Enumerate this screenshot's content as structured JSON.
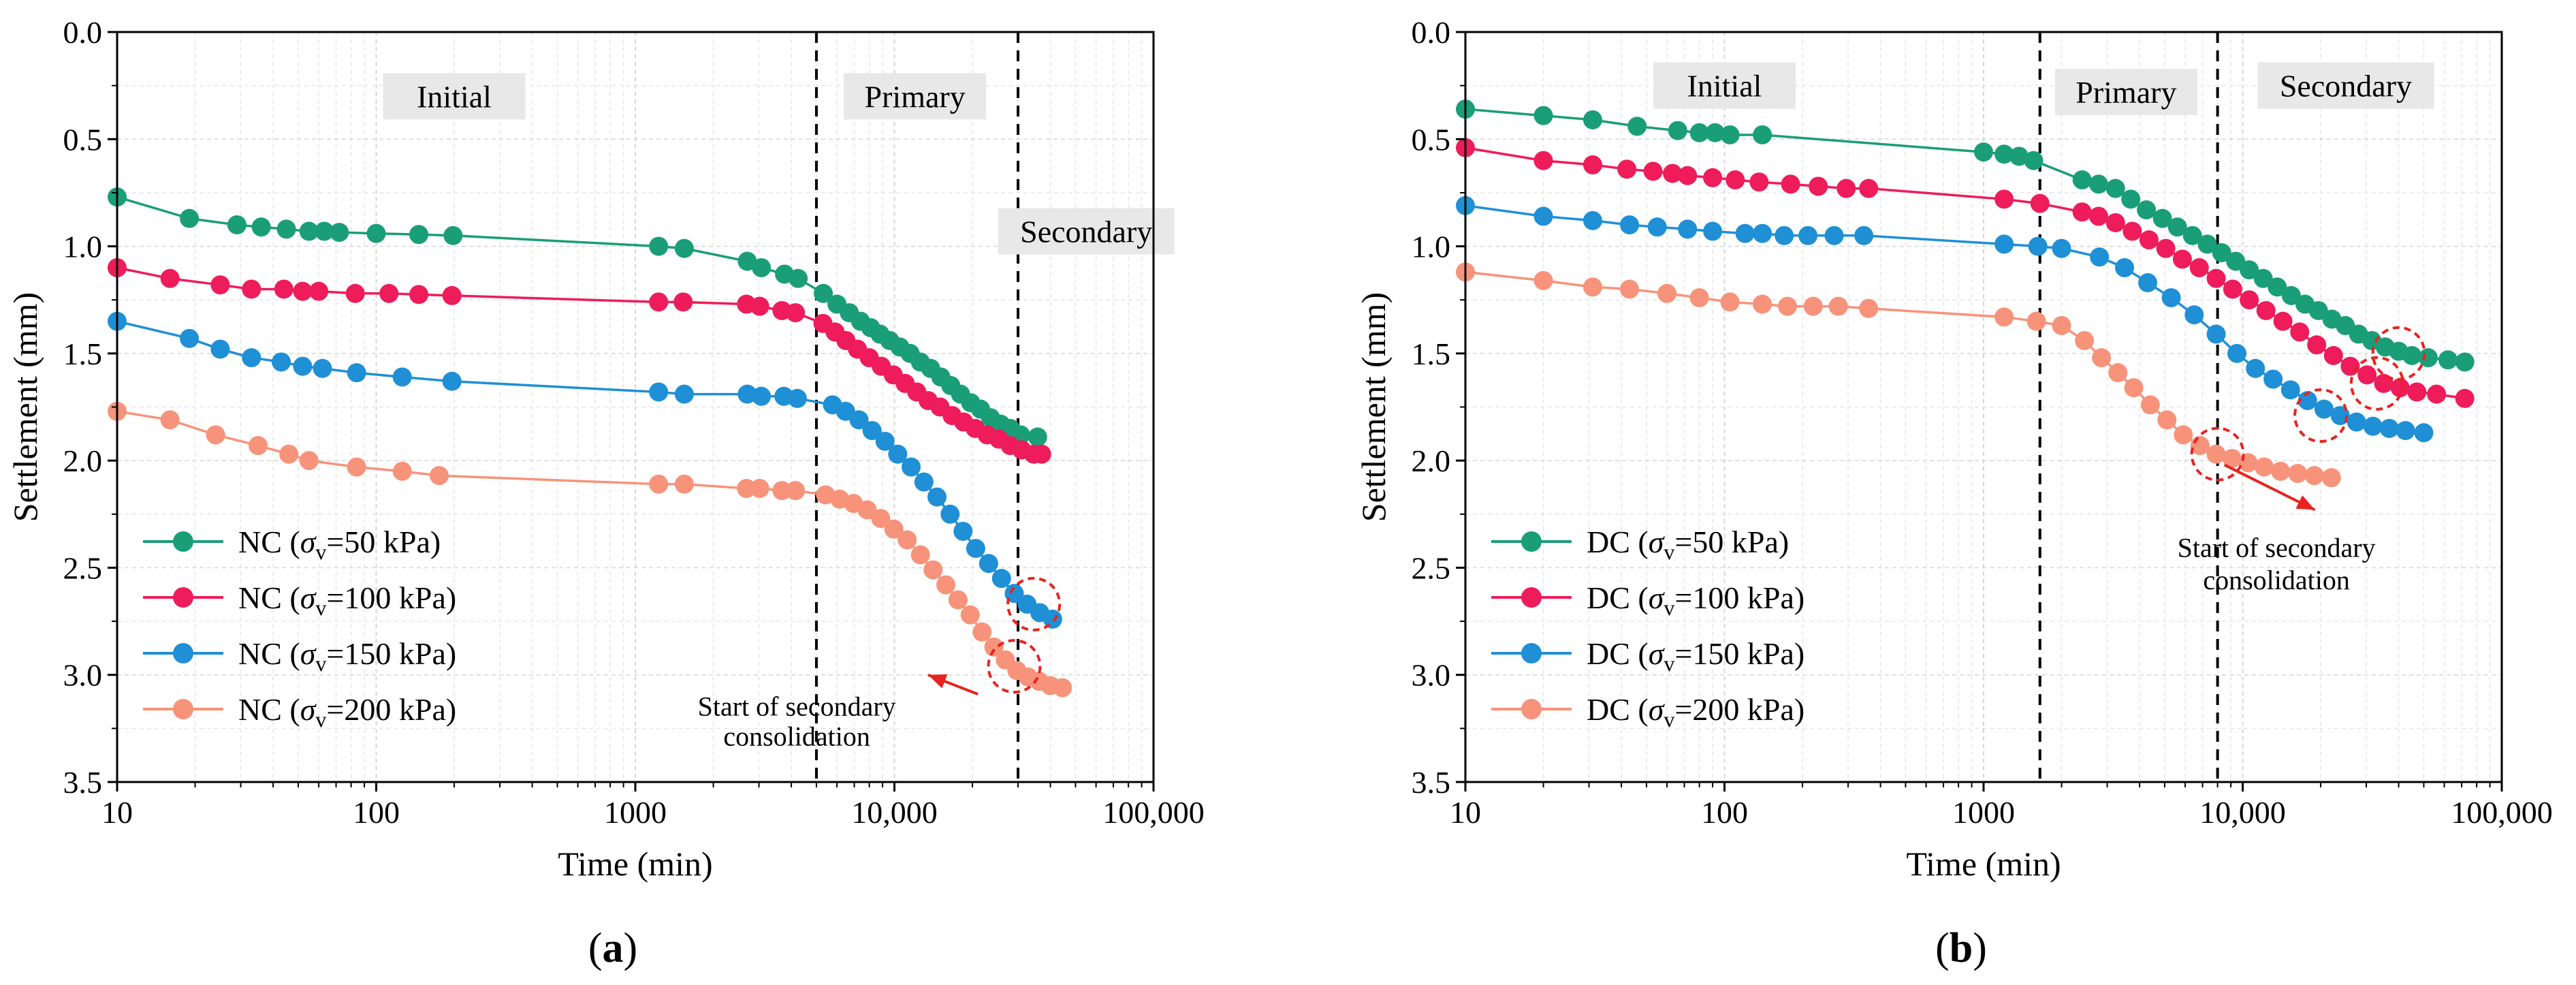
{
  "chart_data": [
    {
      "type": "line",
      "panel_label_pre": "(",
      "panel_label_bold": "a",
      "panel_label_post": ")",
      "xlabel": "Time (min)",
      "ylabel": "Settlement (mm)",
      "xscale": "log",
      "xlim": [
        10,
        100000
      ],
      "ylim": [
        0.0,
        3.5
      ],
      "y_inverted": true,
      "grid": true,
      "x_ticks": [
        10,
        100,
        1000,
        10000,
        100000
      ],
      "x_tick_labels": [
        "10",
        "100",
        "1000",
        "10,000",
        "100,000"
      ],
      "y_ticks": [
        0.0,
        0.5,
        1.0,
        1.5,
        2.0,
        2.5,
        3.0,
        3.5
      ],
      "y_tick_labels": [
        "0.0",
        "0.5",
        "1.0",
        "1.5",
        "2.0",
        "2.5",
        "3.0",
        "3.5"
      ],
      "phase_boundaries": [
        5000,
        30000
      ],
      "phase_labels": [
        {
          "text": "Initial",
          "x": 200,
          "y": 0.3
        },
        {
          "text": "Primary",
          "x": 12000,
          "y": 0.3
        },
        {
          "text": "Secondary",
          "x": 55000,
          "y": 0.93
        }
      ],
      "legend_position": "bottom-left",
      "series": [
        {
          "name": "NC (σv=50 kPa)",
          "legend_prefix": "NC (",
          "legend_sym": "σ",
          "legend_sub": "v",
          "legend_suffix": "=50 kPa)",
          "color": "#1a9e77",
          "x": [
            10,
            19,
            29,
            36,
            45,
            55,
            63,
            72,
            100,
            146,
            198,
            1230,
            1545,
            2705,
            3065,
            3765,
            4250,
            5315,
            6000,
            6700,
            7400,
            8100,
            8800,
            9600,
            10500,
            11500,
            12600,
            13800,
            15100,
            16500,
            18000,
            19700,
            21500,
            23500,
            25700,
            28000,
            30700,
            35700
          ],
          "y": [
            0.77,
            0.87,
            0.9,
            0.91,
            0.92,
            0.93,
            0.93,
            0.935,
            0.94,
            0.945,
            0.95,
            1.0,
            1.01,
            1.07,
            1.1,
            1.13,
            1.15,
            1.22,
            1.27,
            1.31,
            1.35,
            1.38,
            1.41,
            1.44,
            1.47,
            1.5,
            1.54,
            1.57,
            1.61,
            1.65,
            1.69,
            1.73,
            1.76,
            1.8,
            1.83,
            1.85,
            1.88,
            1.89
          ]
        },
        {
          "name": "NC (σv=100 kPa)",
          "legend_prefix": "NC (",
          "legend_sym": "σ",
          "legend_sub": "v",
          "legend_suffix": "=100 kPa)",
          "color": "#ee1c5a",
          "x": [
            10,
            16,
            25,
            33,
            44,
            52,
            60,
            83,
            112,
            146,
            196,
            1230,
            1530,
            2685,
            3020,
            3680,
            4150,
            5300,
            5900,
            6500,
            7200,
            8000,
            8900,
            9900,
            11000,
            12200,
            13500,
            15000,
            16700,
            18500,
            20500,
            22800,
            25300,
            28000,
            31000,
            34500,
            37000
          ],
          "y": [
            1.1,
            1.15,
            1.18,
            1.2,
            1.2,
            1.21,
            1.21,
            1.22,
            1.22,
            1.225,
            1.23,
            1.26,
            1.26,
            1.27,
            1.28,
            1.3,
            1.31,
            1.36,
            1.4,
            1.44,
            1.48,
            1.52,
            1.56,
            1.6,
            1.64,
            1.68,
            1.72,
            1.75,
            1.79,
            1.82,
            1.85,
            1.88,
            1.9,
            1.93,
            1.95,
            1.97,
            1.97
          ]
        },
        {
          "name": "NC (σv=150 kPa)",
          "legend_prefix": "NC (",
          "legend_sym": "σ",
          "legend_sub": "v",
          "legend_suffix": "=150 kPa)",
          "color": "#1f8fd6",
          "x": [
            10,
            19,
            25,
            33,
            43,
            52,
            62,
            84,
            126,
            196,
            1230,
            1545,
            2705,
            3065,
            3745,
            4220,
            5770,
            6480,
            7300,
            8200,
            9200,
            10300,
            11600,
            13000,
            14600,
            16400,
            18400,
            20600,
            23100,
            25900,
            29000,
            32500,
            36400,
            40800
          ],
          "y": [
            1.35,
            1.43,
            1.48,
            1.52,
            1.54,
            1.56,
            1.57,
            1.59,
            1.61,
            1.63,
            1.68,
            1.69,
            1.69,
            1.7,
            1.7,
            1.71,
            1.74,
            1.77,
            1.81,
            1.86,
            1.91,
            1.97,
            2.03,
            2.1,
            2.17,
            2.25,
            2.33,
            2.41,
            2.48,
            2.55,
            2.62,
            2.67,
            2.71,
            2.74
          ]
        },
        {
          "name": "NC (σv=200 kPa)",
          "legend_prefix": "NC (",
          "legend_sym": "σ",
          "legend_sub": "v",
          "legend_suffix": "=200 kPa)",
          "color": "#f7937a",
          "x": [
            10,
            16,
            24,
            35,
            46,
            55,
            84,
            126,
            175,
            1230,
            1545,
            2685,
            3020,
            3680,
            4150,
            5425,
            6150,
            6950,
            7850,
            8850,
            9950,
            11200,
            12600,
            14100,
            15800,
            17600,
            19600,
            21800,
            24200,
            26800,
            29700,
            32800,
            36200,
            40000,
            44500
          ],
          "y": [
            1.77,
            1.81,
            1.88,
            1.93,
            1.97,
            2.0,
            2.03,
            2.05,
            2.07,
            2.11,
            2.11,
            2.13,
            2.13,
            2.14,
            2.14,
            2.16,
            2.18,
            2.2,
            2.23,
            2.27,
            2.32,
            2.37,
            2.44,
            2.51,
            2.58,
            2.65,
            2.72,
            2.8,
            2.87,
            2.93,
            2.98,
            3.01,
            3.03,
            3.05,
            3.06
          ]
        }
      ],
      "annotation": {
        "line1": "Start of secondary",
        "line2": "consolidation",
        "text_x": 4200,
        "text_y1": 3.19,
        "text_y2": 3.33,
        "arrow_from": [
          21000,
          3.09
        ],
        "arrow_to": [
          13500,
          3.0
        ]
      },
      "circles": [
        {
          "x": 34500,
          "y": 2.67
        },
        {
          "x": 29000,
          "y": 2.96
        }
      ]
    },
    {
      "type": "line",
      "panel_label_pre": "(",
      "panel_label_bold": "b",
      "panel_label_post": ")",
      "xlabel": "Time (min)",
      "ylabel": "Settlement (mm)",
      "xscale": "log",
      "xlim": [
        10,
        100000
      ],
      "ylim": [
        0.0,
        3.5
      ],
      "y_inverted": true,
      "grid": true,
      "x_ticks": [
        10,
        100,
        1000,
        10000,
        100000
      ],
      "x_tick_labels": [
        "10",
        "100",
        "1000",
        "10,000",
        "100,000"
      ],
      "y_ticks": [
        0.0,
        0.5,
        1.0,
        1.5,
        2.0,
        2.5,
        3.0,
        3.5
      ],
      "y_tick_labels": [
        "0.0",
        "0.5",
        "1.0",
        "1.5",
        "2.0",
        "2.5",
        "3.0",
        "3.5"
      ],
      "phase_boundaries": [
        1650,
        8000
      ],
      "phase_labels": [
        {
          "text": "Initial",
          "x": 100,
          "y": 0.25
        },
        {
          "text": "Primary",
          "x": 3550,
          "y": 0.28
        },
        {
          "text": "Secondary",
          "x": 25000,
          "y": 0.25
        }
      ],
      "legend_position": "bottom-left",
      "series": [
        {
          "name": "DC (σv=50 kPa)",
          "legend_prefix": "DC (",
          "legend_sym": "σ",
          "legend_sub": "v",
          "legend_suffix": "=50 kPa)",
          "color": "#1a9e77",
          "x": [
            10,
            20,
            31,
            46,
            66,
            80,
            92,
            105,
            140,
            1000,
            1200,
            1370,
            1560,
            2400,
            2780,
            3230,
            3700,
            4250,
            4900,
            5600,
            6400,
            7300,
            8300,
            9400,
            10600,
            12000,
            13600,
            15400,
            17400,
            19600,
            22100,
            24900,
            28000,
            31500,
            35500,
            40000,
            45000,
            52000,
            62000,
            72000
          ],
          "y": [
            0.36,
            0.39,
            0.41,
            0.44,
            0.46,
            0.47,
            0.47,
            0.48,
            0.48,
            0.56,
            0.57,
            0.58,
            0.6,
            0.69,
            0.71,
            0.73,
            0.78,
            0.83,
            0.87,
            0.91,
            0.95,
            0.99,
            1.03,
            1.07,
            1.11,
            1.15,
            1.19,
            1.23,
            1.27,
            1.3,
            1.34,
            1.37,
            1.41,
            1.44,
            1.47,
            1.49,
            1.51,
            1.52,
            1.53,
            1.54
          ]
        },
        {
          "name": "DC (σv=100 kPa)",
          "legend_prefix": "DC (",
          "legend_sym": "σ",
          "legend_sub": "v",
          "legend_suffix": "=100 kPa)",
          "color": "#ee1c5a",
          "x": [
            10,
            20,
            31,
            42,
            53,
            63,
            72,
            90,
            110,
            136,
            180,
            230,
            295,
            360,
            1200,
            1650,
            2400,
            2780,
            3230,
            3750,
            4350,
            5050,
            5850,
            6800,
            7900,
            9150,
            10600,
            12300,
            14300,
            16600,
            19300,
            22400,
            26000,
            30200,
            35000,
            40500,
            47000,
            56000,
            72000
          ],
          "y": [
            0.54,
            0.6,
            0.62,
            0.64,
            0.65,
            0.66,
            0.67,
            0.68,
            0.69,
            0.7,
            0.71,
            0.72,
            0.73,
            0.73,
            0.78,
            0.8,
            0.84,
            0.86,
            0.89,
            0.93,
            0.97,
            1.01,
            1.06,
            1.1,
            1.15,
            1.2,
            1.25,
            1.3,
            1.35,
            1.4,
            1.46,
            1.51,
            1.56,
            1.6,
            1.64,
            1.66,
            1.68,
            1.69,
            1.71
          ]
        },
        {
          "name": "DC (σv=150 kPa)",
          "legend_prefix": "DC (",
          "legend_sym": "σ",
          "legend_sub": "v",
          "legend_suffix": "=150 kPa)",
          "color": "#1f8fd6",
          "x": [
            10,
            20,
            31,
            43,
            55,
            72,
            90,
            120,
            140,
            170,
            210,
            265,
            345,
            1200,
            1620,
            2000,
            2800,
            3500,
            4300,
            5300,
            6500,
            7900,
            9500,
            11200,
            13100,
            15300,
            17800,
            20600,
            23800,
            27500,
            31800,
            36800,
            42500,
            50000
          ],
          "y": [
            0.81,
            0.86,
            0.88,
            0.9,
            0.91,
            0.92,
            0.93,
            0.94,
            0.94,
            0.95,
            0.95,
            0.95,
            0.95,
            0.99,
            1.0,
            1.01,
            1.05,
            1.1,
            1.17,
            1.24,
            1.32,
            1.41,
            1.5,
            1.57,
            1.62,
            1.67,
            1.72,
            1.76,
            1.79,
            1.82,
            1.84,
            1.85,
            1.86,
            1.87
          ]
        },
        {
          "name": "DC (σv=200 kPa)",
          "legend_prefix": "DC (",
          "legend_sym": "σ",
          "legend_sub": "v",
          "legend_suffix": "=200 kPa)",
          "color": "#f7937a",
          "x": [
            10,
            20,
            31,
            43,
            60,
            80,
            105,
            140,
            175,
            220,
            275,
            360,
            1200,
            1600,
            2000,
            2450,
            2850,
            3300,
            3800,
            4400,
            5100,
            5900,
            6850,
            7900,
            9100,
            10500,
            12100,
            14000,
            16300,
            18900,
            22000
          ],
          "y": [
            1.12,
            1.16,
            1.19,
            1.2,
            1.22,
            1.24,
            1.26,
            1.27,
            1.28,
            1.28,
            1.28,
            1.29,
            1.33,
            1.35,
            1.37,
            1.44,
            1.52,
            1.59,
            1.66,
            1.74,
            1.81,
            1.88,
            1.93,
            1.97,
            1.99,
            2.01,
            2.03,
            2.05,
            2.06,
            2.07,
            2.08
          ]
        }
      ],
      "annotation": {
        "line1": "Start of secondary",
        "line2": "consolidation",
        "text_x": 13500,
        "text_y1": 2.45,
        "text_y2": 2.6,
        "arrow_from": [
          8500,
          2.02
        ],
        "arrow_to": [
          19000,
          2.23
        ]
      },
      "circles": [
        {
          "x": 40000,
          "y": 1.5
        },
        {
          "x": 33000,
          "y": 1.64
        },
        {
          "x": 20000,
          "y": 1.79
        },
        {
          "x": 8000,
          "y": 1.97
        }
      ]
    }
  ]
}
